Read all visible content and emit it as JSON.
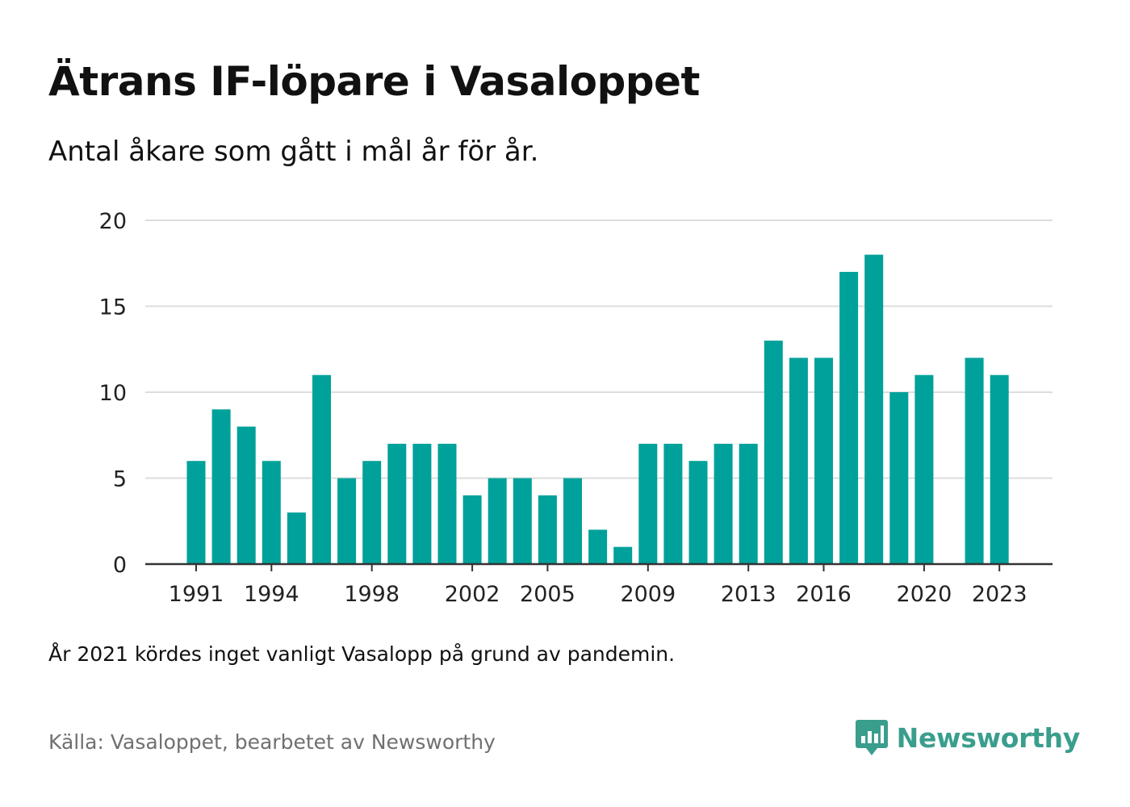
{
  "header": {
    "title": "Ätrans IF-löpare i Vasaloppet",
    "subtitle": "Antal åkare som gått i mål år för år."
  },
  "chart_data": {
    "type": "bar",
    "x": [
      1991,
      1992,
      1993,
      1994,
      1995,
      1996,
      1997,
      1998,
      1999,
      2000,
      2001,
      2002,
      2003,
      2004,
      2005,
      2006,
      2007,
      2008,
      2009,
      2010,
      2011,
      2012,
      2013,
      2014,
      2015,
      2016,
      2017,
      2018,
      2019,
      2020,
      2021,
      2022,
      2023
    ],
    "values": [
      6,
      9,
      8,
      6,
      3,
      11,
      5,
      6,
      7,
      7,
      7,
      4,
      5,
      5,
      4,
      5,
      2,
      1,
      7,
      7,
      6,
      7,
      7,
      13,
      12,
      12,
      17,
      18,
      10,
      11,
      null,
      12,
      11
    ],
    "x_tick_labels": [
      1991,
      1994,
      1998,
      2002,
      2005,
      2009,
      2013,
      2016,
      2020,
      2023
    ],
    "y_ticks": [
      0,
      5,
      10,
      15,
      20
    ],
    "ylim": [
      0,
      20
    ],
    "grid": true,
    "bar_color": "#00a19a"
  },
  "footer": {
    "note": "År 2021 kördes inget vanligt Vasalopp på grund av pandemin.",
    "source": "Källa: Vasaloppet, bearbetet av Newsworthy",
    "brand": "Newsworthy",
    "brand_icon": "bar-chart-pin-icon",
    "brand_color": "#3a9e8d"
  }
}
